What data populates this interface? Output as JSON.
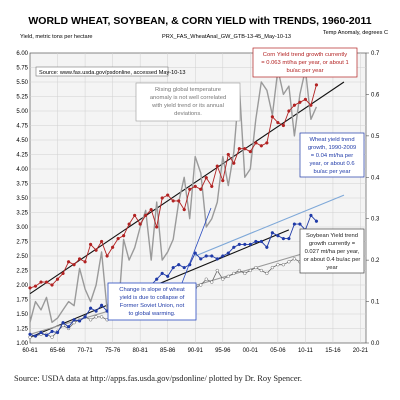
{
  "title": "WORLD WHEAT, SOYBEAN, & CORN YIELD with TRENDS, 1960-2011",
  "left_axis_label": "Yield, metric tons per hectare",
  "right_axis_label": "Temp Anomaly, degrees C",
  "file_label": "PRX_FAS_WheatAnal_GW_GTB-13-45_May-10-13",
  "source_box": "Source: www.fas.usda.gov/psdonline, accessed May-10-13",
  "caption": "Source: USDA data at http://apps.fas.usda.gov/psdonline/ plotted by Dr. Roy Spencer.",
  "annotations": {
    "temp_note": [
      "Rising global temperature",
      "anomaly is not well correlated",
      "with yield trend or its annual",
      "deviations."
    ],
    "corn_note": [
      "Corn Yield trend growth currently",
      "= 0.063 mt/ha per year, or about 1",
      "bu/ac per year"
    ],
    "wheat_note": [
      "Wheat yield trend",
      "growth, 1990-2009",
      "= 0.04 mt/ha per",
      "year, or about 0.6",
      "bu/ac per year"
    ],
    "soy_note": [
      "Soybean Yield trend",
      "growth currently =",
      "0.027 mt/ha per year,",
      "or about 0.4 bu/ac per",
      "year"
    ],
    "ussr_note": [
      "Change in slope of wheat",
      "yield is due to collapse of",
      "Former Soviet Union, not",
      "to global warming."
    ]
  },
  "colors": {
    "corn": "#b22222",
    "wheat": "#1f3aa8",
    "soybean": "#666666",
    "temperature": "#9a9a9a",
    "trend": "#111111",
    "wheat_trend_recent": "#7ea8d8",
    "plot_bg": "#f4f4f4",
    "grid": "#d0d0d0"
  },
  "chart_data": {
    "type": "line",
    "title": "WORLD WHEAT, SOYBEAN, & CORN YIELD with TRENDS, 1960-2011",
    "ylabel": "Yield, metric tons per hectare",
    "y2label": "Temp Anomaly, degrees C",
    "x_tick_labels": [
      "60-61",
      "65-66",
      "70-71",
      "75-76",
      "80-81",
      "85-86",
      "90-91",
      "95-96",
      "00-01",
      "05-06",
      "10-11",
      "15-16",
      "20-21"
    ],
    "y_ticks": [
      "1.00",
      "1.25",
      "1.50",
      "1.75",
      "2.00",
      "2.25",
      "2.50",
      "2.75",
      "3.00",
      "3.25",
      "3.50",
      "3.75",
      "4.00",
      "4.25",
      "4.50",
      "4.75",
      "5.00",
      "5.25",
      "5.50",
      "5.75",
      "6.00"
    ],
    "y2_ticks": [
      "0.0",
      "0.1",
      "0.2",
      "0.3",
      "0.4",
      "0.5",
      "0.6",
      "0.7"
    ],
    "ylim": [
      1.0,
      6.0
    ],
    "y2lim": [
      0.0,
      0.7
    ],
    "xlim": [
      1960,
      2021
    ],
    "grid": true,
    "x": [
      1960,
      1961,
      1962,
      1963,
      1964,
      1965,
      1966,
      1967,
      1968,
      1969,
      1970,
      1971,
      1972,
      1973,
      1974,
      1975,
      1976,
      1977,
      1978,
      1979,
      1980,
      1981,
      1982,
      1983,
      1984,
      1985,
      1986,
      1987,
      1988,
      1989,
      1990,
      1991,
      1992,
      1993,
      1994,
      1995,
      1996,
      1997,
      1998,
      1999,
      2000,
      2001,
      2002,
      2003,
      2004,
      2005,
      2006,
      2007,
      2008,
      2009,
      2010,
      2011,
      2012
    ],
    "series": [
      {
        "name": "Corn",
        "axis": "left",
        "values": [
          1.95,
          1.98,
          2.05,
          2.05,
          2.0,
          2.1,
          2.2,
          2.4,
          2.35,
          2.45,
          2.4,
          2.7,
          2.6,
          2.75,
          2.5,
          2.65,
          2.8,
          2.85,
          3.05,
          3.2,
          3.05,
          3.2,
          3.3,
          3.0,
          3.5,
          3.55,
          3.45,
          3.45,
          3.3,
          3.65,
          3.7,
          3.65,
          3.85,
          3.7,
          4.05,
          3.8,
          4.25,
          4.1,
          4.35,
          4.35,
          4.3,
          4.45,
          4.4,
          4.45,
          4.9,
          4.8,
          4.75,
          5.0,
          5.1,
          5.15,
          5.2,
          5.1,
          5.45
        ]
      },
      {
        "name": "Wheat",
        "axis": "left",
        "values": [
          1.15,
          1.12,
          1.18,
          1.13,
          1.2,
          1.18,
          1.35,
          1.28,
          1.4,
          1.38,
          1.45,
          1.6,
          1.55,
          1.65,
          1.55,
          1.6,
          1.75,
          1.65,
          1.85,
          1.8,
          1.85,
          1.9,
          2.0,
          2.1,
          2.2,
          2.15,
          2.3,
          2.35,
          2.3,
          2.35,
          2.55,
          2.45,
          2.5,
          2.5,
          2.45,
          2.5,
          2.55,
          2.65,
          2.7,
          2.7,
          2.7,
          2.75,
          2.75,
          2.65,
          2.9,
          2.85,
          2.8,
          2.8,
          3.05,
          3.05,
          2.95,
          3.2,
          3.1
        ]
      },
      {
        "name": "Soybean",
        "axis": "left",
        "values": [
          1.1,
          1.12,
          1.15,
          1.15,
          1.1,
          1.2,
          1.3,
          1.25,
          1.35,
          1.4,
          1.45,
          1.4,
          1.45,
          1.45,
          1.4,
          1.55,
          1.5,
          1.65,
          1.7,
          1.75,
          1.6,
          1.75,
          1.7,
          1.65,
          1.8,
          1.9,
          1.85,
          1.95,
          1.8,
          1.95,
          1.95,
          2.0,
          2.1,
          2.05,
          2.25,
          2.1,
          2.15,
          2.2,
          2.25,
          2.2,
          2.25,
          2.3,
          2.25,
          2.2,
          2.3,
          2.35,
          2.35,
          2.4,
          2.45,
          2.4,
          2.55,
          2.5,
          2.45
        ]
      },
      {
        "name": "Temperature anomaly",
        "axis": "right",
        "values": [
          0.05,
          0.1,
          0.08,
          0.11,
          0.05,
          0.06,
          0.08,
          0.1,
          0.09,
          0.18,
          0.13,
          0.1,
          0.14,
          0.22,
          0.08,
          0.14,
          0.07,
          0.25,
          0.2,
          0.23,
          0.28,
          0.32,
          0.2,
          0.34,
          0.2,
          0.22,
          0.25,
          0.34,
          0.4,
          0.3,
          0.45,
          0.41,
          0.28,
          0.3,
          0.34,
          0.45,
          0.38,
          0.46,
          0.62,
          0.4,
          0.42,
          0.54,
          0.63,
          0.61,
          0.55,
          0.66,
          0.6,
          0.62,
          0.5,
          0.6,
          0.66,
          0.54,
          0.57
        ]
      }
    ],
    "trend_lines": [
      {
        "name": "Corn trend",
        "x": [
          1960,
          2017
        ],
        "y": [
          1.85,
          5.5
        ]
      },
      {
        "name": "Wheat trend",
        "x": [
          1960,
          2007
        ],
        "y": [
          1.1,
          2.95
        ]
      },
      {
        "name": "Wheat trend 1990-2009",
        "x": [
          1990,
          2017
        ],
        "y": [
          2.5,
          3.55
        ]
      },
      {
        "name": "Soybean trend",
        "x": [
          1960,
          2017
        ],
        "y": [
          1.15,
          2.75
        ]
      }
    ]
  }
}
